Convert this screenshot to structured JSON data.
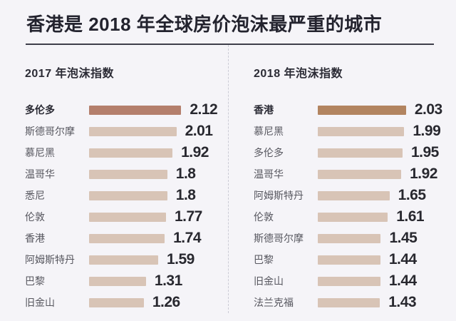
{
  "title": "香港是 2018 年全球房价泡沫最严重的城市",
  "colors": {
    "background": "#f5f4f8",
    "title_text": "#23232e",
    "rule": "#3e3e4a",
    "divider": "#cbcbd5",
    "label_regular": "#57575f",
    "label_highlight": "#2b2b35",
    "value_text": "#28282f"
  },
  "chart_data": [
    {
      "type": "bar",
      "title": "2017 年泡沫指数",
      "orientation": "horizontal",
      "xlim": [
        0,
        2.2
      ],
      "grid": false,
      "legend": "none",
      "categories": [
        "多伦多",
        "斯德哥尔摩",
        "慕尼黑",
        "温哥华",
        "悉尼",
        "伦敦",
        "香港",
        "阿姆斯特丹",
        "巴黎",
        "旧金山"
      ],
      "values": [
        2.12,
        2.01,
        1.92,
        1.8,
        1.8,
        1.77,
        1.74,
        1.59,
        1.31,
        1.26
      ],
      "display_values": [
        "2.12",
        "2.01",
        "1.92",
        "1.8",
        "1.8",
        "1.77",
        "1.74",
        "1.59",
        "1.31",
        "1.26"
      ],
      "highlight_index": 0,
      "bar_color": "#d8c4b6",
      "highlight_color": "#b47f6c"
    },
    {
      "type": "bar",
      "title": "2018 年泡沫指数",
      "orientation": "horizontal",
      "xlim": [
        0,
        2.2
      ],
      "grid": false,
      "legend": "none",
      "categories": [
        "香港",
        "慕尼黑",
        "多伦多",
        "温哥华",
        "阿姆斯特丹",
        "伦敦",
        "斯德哥尔摩",
        "巴黎",
        "旧金山",
        "法兰克福"
      ],
      "values": [
        2.03,
        1.99,
        1.95,
        1.92,
        1.65,
        1.61,
        1.45,
        1.44,
        1.44,
        1.43
      ],
      "display_values": [
        "2.03",
        "1.99",
        "1.95",
        "1.92",
        "1.65",
        "1.61",
        "1.45",
        "1.44",
        "1.44",
        "1.43"
      ],
      "highlight_index": 0,
      "bar_color": "#d8c4b6",
      "highlight_color": "#b28460"
    }
  ]
}
